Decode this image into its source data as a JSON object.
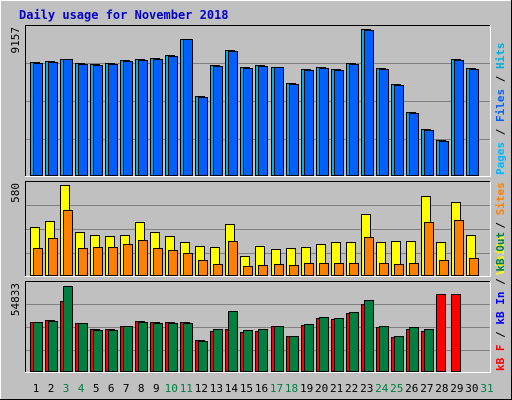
{
  "title": "Daily usage for November 2018",
  "colors": {
    "hits": "#00b0e0",
    "files": "#0060ff",
    "pages": "#00b8ff",
    "visits": "#ffff00",
    "sites": "#ff8000",
    "kb_in": "#008040",
    "kb_out": "#0000ff",
    "kb_f": "#ff0000",
    "frame_dark": "#000000",
    "weekday_label": "#000000",
    "weekend_label": "#008040",
    "title": "#0000c8",
    "grid": "#808080",
    "panel_bg": "#c0c0c0"
  },
  "chart_data": [
    {
      "type": "bar",
      "panel": "hits-files-pages",
      "ymax_label": "9157",
      "ymax": 9157,
      "side_labels": [
        {
          "text": "Pages",
          "color_key": "pages"
        },
        {
          "text": " / ",
          "color_key": "frame_dark"
        },
        {
          "text": "Files",
          "color_key": "files"
        },
        {
          "text": " / ",
          "color_key": "frame_dark"
        },
        {
          "text": "Hits",
          "color_key": "hits"
        }
      ],
      "categories": [
        "1",
        "2",
        "3",
        "4",
        "5",
        "6",
        "7",
        "8",
        "9",
        "10",
        "11",
        "12",
        "13",
        "14",
        "15",
        "16",
        "17",
        "18",
        "19",
        "20",
        "21",
        "22",
        "23",
        "24",
        "25",
        "26",
        "27",
        "28",
        "29",
        "30",
        "31"
      ],
      "series": [
        {
          "name": "Hits",
          "values": [
            7100,
            7150,
            7300,
            7000,
            6950,
            7000,
            7200,
            7250,
            7350,
            7500,
            8550,
            4950,
            6900,
            7850,
            6750,
            6900,
            6800,
            5750,
            6650,
            6750,
            6650,
            7000,
            9157,
            6700,
            5700,
            3950,
            2900,
            2200,
            7250,
            6700,
            0
          ]
        },
        {
          "name": "Files",
          "values": [
            7050,
            7100,
            7250,
            6950,
            6900,
            6950,
            7150,
            7200,
            7300,
            7450,
            8500,
            4900,
            6850,
            7800,
            6700,
            6850,
            6750,
            5700,
            6600,
            6700,
            6600,
            6950,
            9100,
            6650,
            5650,
            3900,
            2850,
            2150,
            7200,
            6650,
            0
          ]
        }
      ]
    },
    {
      "type": "bar",
      "panel": "visits-sites",
      "ymax_label": "580",
      "ymax": 580,
      "side_labels": [
        {
          "text": "Visits",
          "color_key": "visits"
        },
        {
          "text": " / ",
          "color_key": "frame_dark"
        },
        {
          "text": "Sites",
          "color_key": "sites"
        }
      ],
      "categories": [
        "1",
        "2",
        "3",
        "4",
        "5",
        "6",
        "7",
        "8",
        "9",
        "10",
        "11",
        "12",
        "13",
        "14",
        "15",
        "16",
        "17",
        "18",
        "19",
        "20",
        "21",
        "22",
        "23",
        "24",
        "25",
        "26",
        "27",
        "28",
        "29",
        "30",
        "31"
      ],
      "series": [
        {
          "name": "Visits",
          "values": [
            310,
            350,
            580,
            280,
            260,
            250,
            260,
            340,
            280,
            250,
            210,
            190,
            180,
            330,
            125,
            190,
            170,
            175,
            180,
            200,
            210,
            215,
            390,
            210,
            220,
            220,
            510,
            215,
            470,
            260,
            0
          ]
        },
        {
          "name": "Sites",
          "values": [
            175,
            240,
            420,
            175,
            180,
            180,
            200,
            225,
            175,
            160,
            140,
            95,
            70,
            220,
            55,
            65,
            70,
            65,
            75,
            80,
            75,
            80,
            245,
            75,
            70,
            80,
            340,
            95,
            355,
            110,
            0
          ]
        }
      ]
    },
    {
      "type": "bar",
      "panel": "kbytes",
      "ymax_label": "54833",
      "ymax": 54833,
      "side_labels": [
        {
          "text": "kB F",
          "color_key": "kb_f"
        },
        {
          "text": " / ",
          "color_key": "frame_dark"
        },
        {
          "text": "kB In",
          "color_key": "kb_out"
        },
        {
          "text": " / ",
          "color_key": "frame_dark"
        },
        {
          "text": "kB Out",
          "color_key": "kb_in"
        }
      ],
      "categories": [
        "1",
        "2",
        "3",
        "4",
        "5",
        "6",
        "7",
        "8",
        "9",
        "10",
        "11",
        "12",
        "13",
        "14",
        "15",
        "16",
        "17",
        "18",
        "19",
        "20",
        "21",
        "22",
        "23",
        "24",
        "25",
        "26",
        "27",
        "28",
        "29",
        "30",
        "31"
      ],
      "series": [
        {
          "name": "kB F",
          "values": [
            31500,
            32500,
            44500,
            30500,
            26500,
            26500,
            29000,
            32000,
            31000,
            31000,
            31000,
            19500,
            25500,
            26500,
            25000,
            25500,
            28500,
            22000,
            29500,
            34000,
            33000,
            37000,
            43000,
            28000,
            21500,
            27000,
            25500,
            49000,
            49000,
            0,
            0
          ]
        },
        {
          "name": "kB Out",
          "values": [
            31500,
            32000,
            54500,
            30500,
            26000,
            26000,
            28500,
            31500,
            30500,
            30500,
            30500,
            19000,
            26500,
            38500,
            26000,
            26500,
            29000,
            22500,
            30000,
            34500,
            34000,
            37500,
            45000,
            28500,
            22000,
            28000,
            26500,
            0,
            0,
            0,
            0
          ]
        }
      ]
    }
  ],
  "days": [
    {
      "label": "1",
      "weekend": false
    },
    {
      "label": "2",
      "weekend": false
    },
    {
      "label": "3",
      "weekend": true
    },
    {
      "label": "4",
      "weekend": true
    },
    {
      "label": "5",
      "weekend": false
    },
    {
      "label": "6",
      "weekend": false
    },
    {
      "label": "7",
      "weekend": false
    },
    {
      "label": "8",
      "weekend": false
    },
    {
      "label": "9",
      "weekend": false
    },
    {
      "label": "10",
      "weekend": true
    },
    {
      "label": "11",
      "weekend": true
    },
    {
      "label": "12",
      "weekend": false
    },
    {
      "label": "13",
      "weekend": false
    },
    {
      "label": "14",
      "weekend": false
    },
    {
      "label": "15",
      "weekend": false
    },
    {
      "label": "16",
      "weekend": false
    },
    {
      "label": "17",
      "weekend": true
    },
    {
      "label": "18",
      "weekend": true
    },
    {
      "label": "19",
      "weekend": false
    },
    {
      "label": "20",
      "weekend": false
    },
    {
      "label": "21",
      "weekend": false
    },
    {
      "label": "22",
      "weekend": false
    },
    {
      "label": "23",
      "weekend": false
    },
    {
      "label": "24",
      "weekend": true
    },
    {
      "label": "25",
      "weekend": true
    },
    {
      "label": "26",
      "weekend": false
    },
    {
      "label": "27",
      "weekend": false
    },
    {
      "label": "28",
      "weekend": false
    },
    {
      "label": "29",
      "weekend": false
    },
    {
      "label": "30",
      "weekend": false
    },
    {
      "label": "31",
      "weekend": true
    }
  ]
}
